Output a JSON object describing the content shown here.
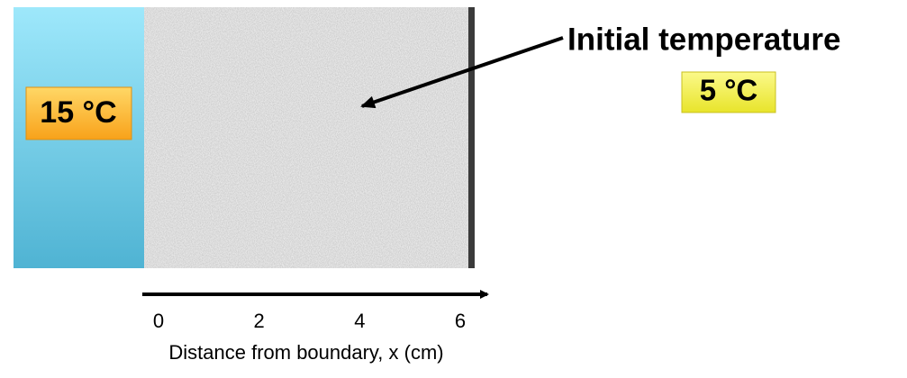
{
  "boundary": {
    "label": "15 °C"
  },
  "initial": {
    "title": "Initial temperature",
    "value": "5 °C"
  },
  "axis": {
    "ticks": [
      "0",
      "2",
      "4",
      "6"
    ],
    "label": "Distance from boundary, x (cm)"
  }
}
